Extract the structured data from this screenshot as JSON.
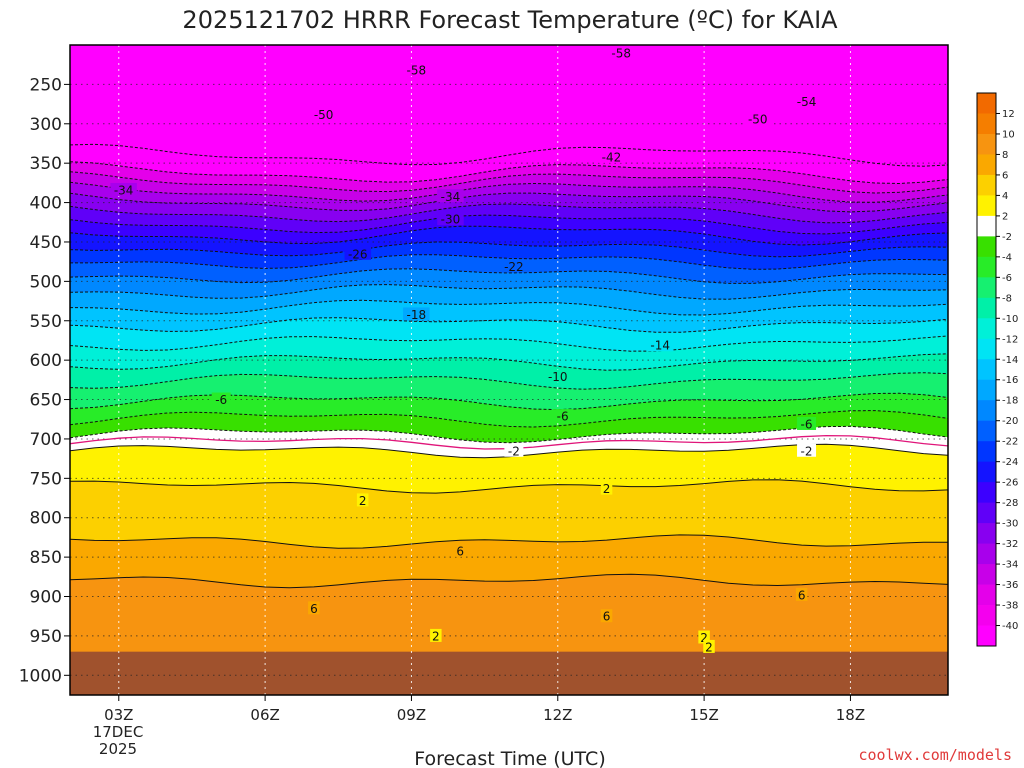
{
  "chart_data": {
    "type": "heatmap",
    "title": "2025121702 HRRR Forecast Temperature (ºC) for KAIA",
    "xlabel": "Forecast Time (UTC)",
    "ylabel": "",
    "credit": "coolwx.com/models",
    "x_ticks": [
      {
        "label": "03Z",
        "hour": 3
      },
      {
        "label": "06Z",
        "hour": 6
      },
      {
        "label": "09Z",
        "hour": 9
      },
      {
        "label": "12Z",
        "hour": 12
      },
      {
        "label": "15Z",
        "hour": 15
      },
      {
        "label": "18Z",
        "hour": 18
      }
    ],
    "x_date_lines": [
      "17DEC",
      "2025"
    ],
    "xlim": [
      2,
      20
    ],
    "y_ticks": [
      250,
      300,
      350,
      400,
      450,
      500,
      550,
      600,
      650,
      700,
      750,
      800,
      850,
      900,
      950,
      1000
    ],
    "ylim_hpa": [
      200,
      1025
    ],
    "ground_pressure_hpa": 970,
    "colorbar": {
      "ticks": [
        12,
        10,
        8,
        6,
        4,
        2,
        -2,
        -4,
        -6,
        -8,
        -10,
        -12,
        -14,
        -16,
        -18,
        -20,
        -22,
        -24,
        -26,
        -28,
        -30,
        -32,
        -34,
        -36,
        -38,
        -40
      ],
      "bands": [
        {
          "from": 12,
          "to": 14,
          "color": "#f26a00"
        },
        {
          "from": 10,
          "to": 12,
          "color": "#f57e00"
        },
        {
          "from": 8,
          "to": 10,
          "color": "#f79410"
        },
        {
          "from": 6,
          "to": 8,
          "color": "#faa800"
        },
        {
          "from": 4,
          "to": 6,
          "color": "#fcd000"
        },
        {
          "from": 2,
          "to": 4,
          "color": "#fff200"
        },
        {
          "from": -2,
          "to": 2,
          "color": "#ffffff"
        },
        {
          "from": -4,
          "to": -2,
          "color": "#38e000"
        },
        {
          "from": -6,
          "to": -4,
          "color": "#28ec28"
        },
        {
          "from": -8,
          "to": -6,
          "color": "#16f070"
        },
        {
          "from": -10,
          "to": -8,
          "color": "#00f0a8"
        },
        {
          "from": -12,
          "to": -10,
          "color": "#00f0d8"
        },
        {
          "from": -14,
          "to": -12,
          "color": "#00e4f4"
        },
        {
          "from": -16,
          "to": -14,
          "color": "#00c4ff"
        },
        {
          "from": -18,
          "to": -16,
          "color": "#00a8ff"
        },
        {
          "from": -20,
          "to": -18,
          "color": "#0088ff"
        },
        {
          "from": -22,
          "to": -20,
          "color": "#0060ff"
        },
        {
          "from": -24,
          "to": -22,
          "color": "#0036ff"
        },
        {
          "from": -26,
          "to": -24,
          "color": "#1414ff"
        },
        {
          "from": -28,
          "to": -26,
          "color": "#3c00ff"
        },
        {
          "from": -30,
          "to": -28,
          "color": "#6000f8"
        },
        {
          "from": -32,
          "to": -30,
          "color": "#8800f0"
        },
        {
          "from": -34,
          "to": -32,
          "color": "#a800ec"
        },
        {
          "from": -36,
          "to": -34,
          "color": "#c800e8"
        },
        {
          "from": -38,
          "to": -36,
          "color": "#e400ea"
        },
        {
          "from": -40,
          "to": -38,
          "color": "#f400ee"
        },
        {
          "from": -70,
          "to": -40,
          "color": "#ff00ff"
        }
      ]
    },
    "ground_color": "#a0522d",
    "profile_layers": [
      {
        "t": -42,
        "p": 340
      },
      {
        "t": -38,
        "p": 362
      },
      {
        "t": -36,
        "p": 374
      },
      {
        "t": -34,
        "p": 386
      },
      {
        "t": -32,
        "p": 398
      },
      {
        "t": -30,
        "p": 412
      },
      {
        "t": -28,
        "p": 426
      },
      {
        "t": -26,
        "p": 440
      },
      {
        "t": -24,
        "p": 458
      },
      {
        "t": -22,
        "p": 474
      },
      {
        "t": -20,
        "p": 492
      },
      {
        "t": -18,
        "p": 512
      },
      {
        "t": -16,
        "p": 532
      },
      {
        "t": -14,
        "p": 554
      },
      {
        "t": -12,
        "p": 578
      },
      {
        "t": -10,
        "p": 602
      },
      {
        "t": -8,
        "p": 626
      },
      {
        "t": -6,
        "p": 652
      },
      {
        "t": -4,
        "p": 674
      },
      {
        "t": -2,
        "p": 694
      },
      {
        "t": 2,
        "p": 715
      },
      {
        "t": 4,
        "p": 760
      },
      {
        "t": 6,
        "p": 830
      },
      {
        "t": 8,
        "p": 880
      }
    ],
    "contour_labels": [
      {
        "text": "-58",
        "hour": 13.3,
        "p": 210
      },
      {
        "text": "-58",
        "hour": 9.1,
        "p": 232
      },
      {
        "text": "-54",
        "hour": 17.1,
        "p": 272
      },
      {
        "text": "-50",
        "hour": 7.2,
        "p": 288
      },
      {
        "text": "-50",
        "hour": 16.1,
        "p": 294
      },
      {
        "text": "-42",
        "hour": 13.1,
        "p": 342
      },
      {
        "text": "-34",
        "hour": 3.1,
        "p": 384
      },
      {
        "text": "-34",
        "hour": 9.8,
        "p": 392
      },
      {
        "text": "-30",
        "hour": 9.8,
        "p": 421
      },
      {
        "text": "-26",
        "hour": 7.9,
        "p": 465
      },
      {
        "text": "-22",
        "hour": 11.1,
        "p": 481
      },
      {
        "text": "-18",
        "hour": 9.1,
        "p": 542
      },
      {
        "text": "-14",
        "hour": 14.1,
        "p": 581
      },
      {
        "text": "-10",
        "hour": 12.0,
        "p": 621
      },
      {
        "text": "-6",
        "hour": 5.1,
        "p": 650
      },
      {
        "text": "-6",
        "hour": 12.1,
        "p": 671
      },
      {
        "text": "-6",
        "hour": 17.1,
        "p": 681
      },
      {
        "text": "-2",
        "hour": 11.1,
        "p": 715
      },
      {
        "text": "-2",
        "hour": 17.1,
        "p": 715
      },
      {
        "text": "2",
        "hour": 8.0,
        "p": 778
      },
      {
        "text": "2",
        "hour": 13.0,
        "p": 763
      },
      {
        "text": "6",
        "hour": 10.0,
        "p": 842
      },
      {
        "text": "6",
        "hour": 7.0,
        "p": 915
      },
      {
        "text": "6",
        "hour": 13.0,
        "p": 925
      },
      {
        "text": "6",
        "hour": 17.0,
        "p": 898
      },
      {
        "text": "2",
        "hour": 9.5,
        "p": 950
      },
      {
        "text": "2",
        "hour": 15.0,
        "p": 952
      },
      {
        "text": "2",
        "hour": 15.1,
        "p": 964
      }
    ]
  }
}
